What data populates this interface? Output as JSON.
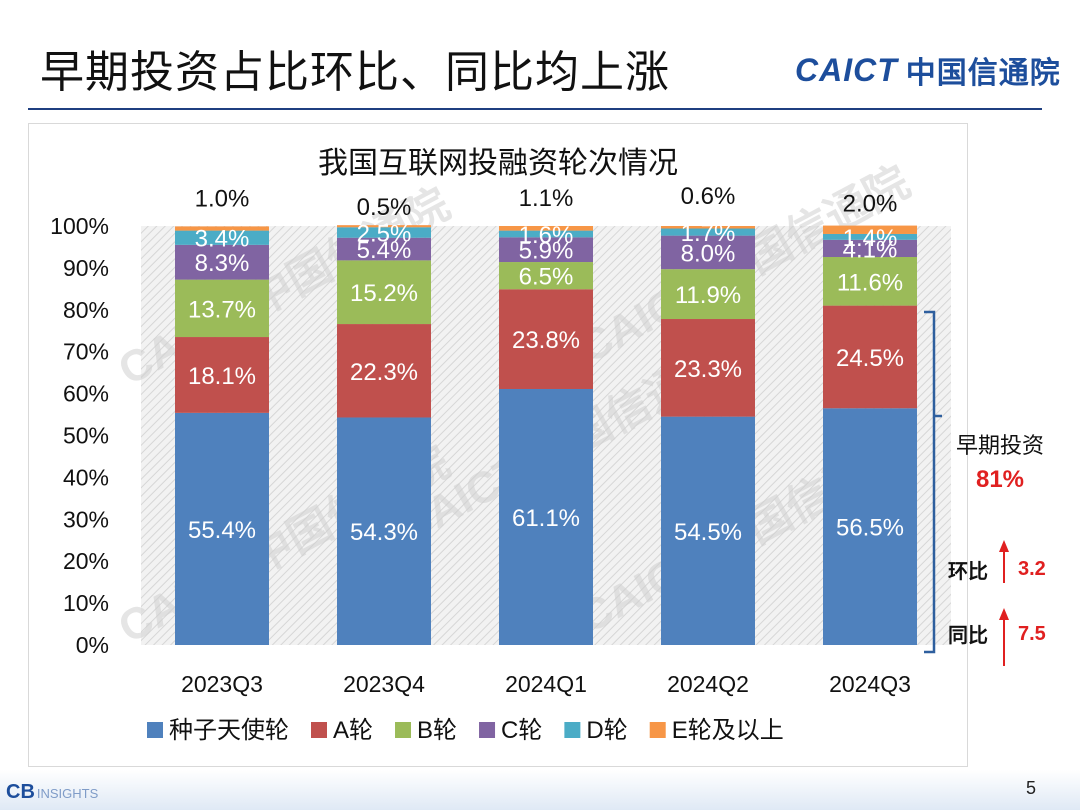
{
  "slide": {
    "title": "早期投资占比环比、同比均上涨",
    "logo_en": "CAICT",
    "logo_cn": "中国信通院",
    "page_number": "5",
    "footer_logo": "CB",
    "footer_sub": "INSIGHTS"
  },
  "watermark": "CAICT 中国信通院",
  "annotation": {
    "label": "早期投资",
    "value": "81%",
    "qoq_label": "环比",
    "qoq_value": "3.2",
    "yoy_label": "同比",
    "yoy_value": "7.5"
  },
  "chart_data": {
    "type": "bar",
    "stacked": true,
    "title": "我国互联网投融资轮次情况",
    "categories": [
      "2023Q3",
      "2023Q4",
      "2024Q1",
      "2024Q2",
      "2024Q3"
    ],
    "series": [
      {
        "name": "种子天使轮",
        "color": "#4f81bd",
        "values": [
          55.4,
          54.3,
          61.1,
          54.5,
          56.5
        ]
      },
      {
        "name": "A轮",
        "color": "#c0504d",
        "values": [
          18.1,
          22.3,
          23.8,
          23.3,
          24.5
        ]
      },
      {
        "name": "B轮",
        "color": "#9bbb59",
        "values": [
          13.7,
          15.2,
          6.5,
          11.9,
          11.6
        ]
      },
      {
        "name": "C轮",
        "color": "#8064a2",
        "values": [
          8.3,
          5.4,
          5.9,
          8.0,
          4.1
        ]
      },
      {
        "name": "D轮",
        "color": "#4bacc6",
        "values": [
          3.4,
          2.5,
          1.6,
          1.7,
          1.4
        ]
      },
      {
        "name": "E轮及以上",
        "color": "#f79646",
        "values": [
          1.0,
          0.5,
          1.1,
          0.6,
          2.0
        ]
      }
    ],
    "data_labels": [
      [
        "55.4%",
        "54.3%",
        "61.1%",
        "54.5%",
        "56.5%"
      ],
      [
        "18.1%",
        "22.3%",
        "23.8%",
        "23.3%",
        "24.5%"
      ],
      [
        "13.7%",
        "15.2%",
        "6.5%",
        "11.9%",
        "11.6%"
      ],
      [
        "8.3%",
        "5.4%",
        "5.9%",
        "8.0%",
        "4.1%"
      ],
      [
        "3.4%",
        "2.5%",
        "1.6%",
        "1.7%",
        "1.4%"
      ],
      [
        "1.0%",
        "0.5%",
        "1.1%",
        "0.6%",
        "2.0%"
      ]
    ],
    "yticks": [
      "0%",
      "10%",
      "20%",
      "30%",
      "40%",
      "50%",
      "60%",
      "70%",
      "80%",
      "90%",
      "100%"
    ],
    "ylim": [
      0,
      100
    ],
    "legend_position": "bottom"
  }
}
